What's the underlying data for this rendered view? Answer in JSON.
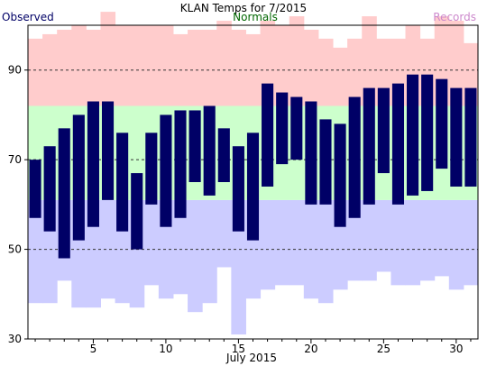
{
  "chart_data": {
    "type": "bar",
    "title": "KLAN Temps for 7/2015",
    "xlabel": "July 2015",
    "legend": [
      {
        "label": "Observed",
        "color": "#000066",
        "position": "top-left"
      },
      {
        "label": "Normals",
        "color": "#006600",
        "position": "top-center"
      },
      {
        "label": "Records",
        "color": "#cc88cc",
        "position": "top-right"
      }
    ],
    "x_range": [
      1,
      31
    ],
    "ylim": [
      30,
      100
    ],
    "y_ticks": [
      30,
      50,
      70,
      90
    ],
    "x_ticks": [
      5,
      10,
      15,
      20,
      25,
      30
    ],
    "days": [
      1,
      2,
      3,
      4,
      5,
      6,
      7,
      8,
      9,
      10,
      11,
      12,
      13,
      14,
      15,
      16,
      17,
      18,
      19,
      20,
      21,
      22,
      23,
      24,
      25,
      26,
      27,
      28,
      29,
      30,
      31
    ],
    "observed": [
      {
        "day": 1,
        "high": 70,
        "low": 57
      },
      {
        "day": 2,
        "high": 73,
        "low": 54
      },
      {
        "day": 3,
        "high": 77,
        "low": 48
      },
      {
        "day": 4,
        "high": 80,
        "low": 52
      },
      {
        "day": 5,
        "high": 83,
        "low": 55
      },
      {
        "day": 6,
        "high": 83,
        "low": 61
      },
      {
        "day": 7,
        "high": 76,
        "low": 54
      },
      {
        "day": 8,
        "high": 67,
        "low": 50
      },
      {
        "day": 9,
        "high": 76,
        "low": 60
      },
      {
        "day": 10,
        "high": 80,
        "low": 55
      },
      {
        "day": 11,
        "high": 81,
        "low": 57
      },
      {
        "day": 12,
        "high": 81,
        "low": 65
      },
      {
        "day": 13,
        "high": 82,
        "low": 62
      },
      {
        "day": 14,
        "high": 77,
        "low": 65
      },
      {
        "day": 15,
        "high": 73,
        "low": 54
      },
      {
        "day": 16,
        "high": 76,
        "low": 52
      },
      {
        "day": 17,
        "high": 87,
        "low": 64
      },
      {
        "day": 18,
        "high": 85,
        "low": 69
      },
      {
        "day": 19,
        "high": 84,
        "low": 70
      },
      {
        "day": 20,
        "high": 83,
        "low": 60
      },
      {
        "day": 21,
        "high": 79,
        "low": 60
      },
      {
        "day": 22,
        "high": 78,
        "low": 55
      },
      {
        "day": 23,
        "high": 84,
        "low": 57
      },
      {
        "day": 24,
        "high": 86,
        "low": 60
      },
      {
        "day": 25,
        "high": 86,
        "low": 67
      },
      {
        "day": 26,
        "high": 87,
        "low": 60
      },
      {
        "day": 27,
        "high": 89,
        "low": 62
      },
      {
        "day": 28,
        "high": 89,
        "low": 63
      },
      {
        "day": 29,
        "high": 88,
        "low": 68
      },
      {
        "day": 30,
        "high": 86,
        "low": 64
      },
      {
        "day": 31,
        "high": 86,
        "low": 64
      }
    ],
    "normals": {
      "low_start": 61,
      "low_end": 61,
      "high_start": 82,
      "high_end": 82
    },
    "records_high": [
      97,
      98,
      99,
      100,
      99,
      103,
      100,
      100,
      100,
      100,
      98,
      99,
      99,
      101,
      99,
      98,
      101,
      100,
      102,
      99,
      97,
      95,
      97,
      102,
      97,
      97,
      100,
      97,
      102,
      101,
      96
    ],
    "records_low": [
      38,
      38,
      43,
      37,
      37,
      39,
      38,
      37,
      42,
      39,
      40,
      36,
      38,
      46,
      31,
      39,
      41,
      42,
      42,
      39,
      38,
      41,
      43,
      43,
      45,
      42,
      42,
      43,
      44,
      41,
      42
    ],
    "dashed_gridlines": [
      50,
      70,
      90
    ],
    "colors": {
      "observed": "#000066",
      "normals": "#ccffcc",
      "records_high": "#ffcccc",
      "records_low": "#ccccff",
      "frame": "#000000",
      "grid": "#333333"
    }
  }
}
